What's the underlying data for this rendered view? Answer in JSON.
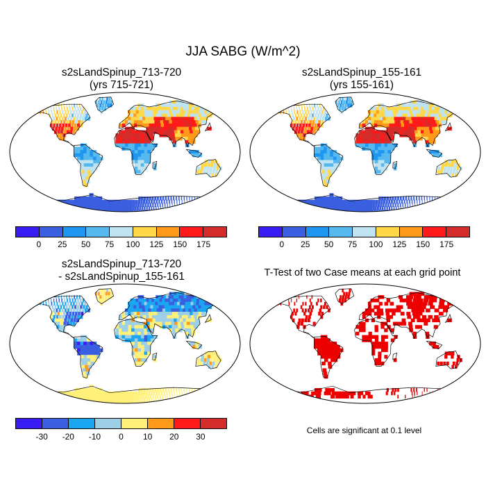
{
  "main_title": "JJA SABG (W/m^2)",
  "panels": [
    {
      "id": "tl",
      "title_line1": "s2sLandSpinup_713-720",
      "title_line2": "(yrs 715-721)",
      "type": "field"
    },
    {
      "id": "tr",
      "title_line1": "s2sLandSpinup_155-161",
      "title_line2": "(yrs 155-161)",
      "type": "field"
    },
    {
      "id": "bl",
      "title_line1": "s2sLandSpinup_713-720",
      "title_line2": "- s2sLandSpinup_155-161",
      "type": "diff"
    },
    {
      "id": "br",
      "title_line1": "T-Test of two Case means at each grid point",
      "title_line2": "",
      "type": "ttest"
    }
  ],
  "colorbars": {
    "field": {
      "colors": [
        "#3a1cf5",
        "#3a5fe0",
        "#1f96f0",
        "#55b8ee",
        "#bfe3f0",
        "#ffd84a",
        "#ff9a1a",
        "#ff1a1a",
        "#d42b2b"
      ],
      "labels": [
        "0",
        "25",
        "50",
        "75",
        "100",
        "125",
        "150",
        "175"
      ]
    },
    "diff": {
      "colors": [
        "#3a1cf5",
        "#3a5fe0",
        "#1aa6f0",
        "#9dcfe6",
        "#fff07a",
        "#ff9a1a",
        "#ff1a1a",
        "#d42b2b"
      ],
      "labels": [
        "-30",
        "-20",
        "-10",
        "0",
        "10",
        "20",
        "30"
      ]
    }
  },
  "ttest_color": "#ee0000",
  "significance_note": "Cells are significant at 0.1 level"
}
